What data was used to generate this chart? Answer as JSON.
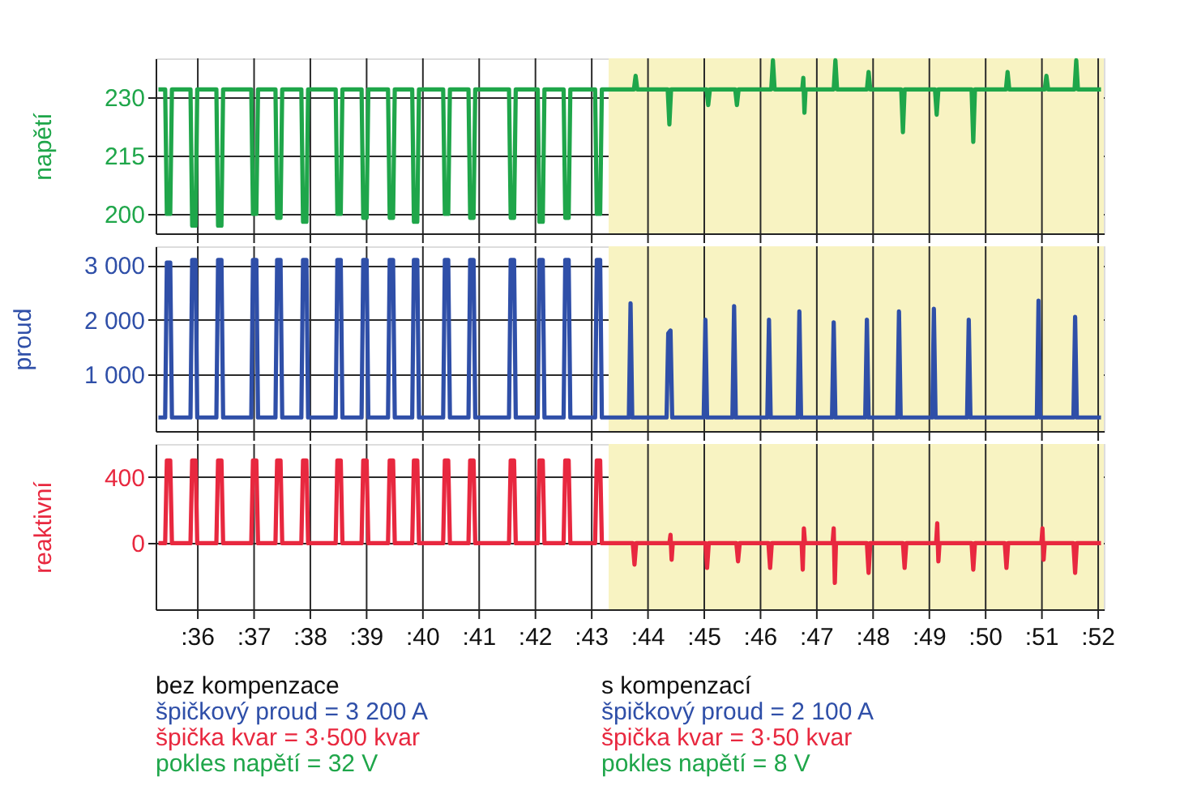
{
  "chart_data": [
    {
      "type": "line",
      "ylabel": "napětí",
      "xlim": [
        35.25,
        52.1
      ],
      "ylim": [
        195,
        240
      ],
      "yticks": [
        200,
        215,
        230
      ],
      "xticks": [
        {
          "value": 36,
          "label": null
        },
        {
          "value": 37,
          "label": null
        },
        {
          "value": 38,
          "label": null
        },
        {
          "value": 39,
          "label": null
        },
        {
          "value": 40,
          "label": null
        },
        {
          "value": 41,
          "label": null
        },
        {
          "value": 42,
          "label": null
        },
        {
          "value": 43,
          "label": null
        },
        {
          "value": 44,
          "label": null
        },
        {
          "value": 45,
          "label": null
        },
        {
          "value": 46,
          "label": null
        },
        {
          "value": 47,
          "label": null
        },
        {
          "value": 48,
          "label": null
        },
        {
          "value": 49,
          "label": null
        },
        {
          "value": 50,
          "label": null
        },
        {
          "value": 51,
          "label": null
        },
        {
          "value": 52,
          "label": null
        }
      ],
      "grid": true,
      "tick_labels": "y",
      "bands": [
        {
          "axis": "x",
          "from": 43.3,
          "to": 52.1,
          "color": "#f8f3c2"
        }
      ],
      "series": [
        {
          "color": "#1fa64a",
          "x": [
            35.3,
            35.42,
            35.45,
            35.51,
            35.54,
            35.87,
            35.9,
            35.96,
            35.99,
            36.33,
            36.36,
            36.42,
            36.45,
            36.95,
            36.98,
            37.04,
            37.07,
            37.38,
            37.41,
            37.47,
            37.5,
            37.84,
            37.87,
            37.93,
            37.96,
            38.45,
            38.48,
            38.54,
            38.57,
            38.91,
            38.94,
            39.0,
            39.03,
            39.38,
            39.41,
            39.47,
            39.5,
            39.81,
            39.84,
            39.9,
            39.93,
            40.36,
            40.39,
            40.45,
            40.48,
            40.81,
            40.84,
            40.9,
            40.93,
            41.53,
            41.56,
            41.62,
            41.65,
            42.04,
            42.07,
            42.13,
            42.16,
            42.5,
            42.53,
            42.59,
            42.62,
            43.06,
            43.09,
            43.15,
            43.18,
            43.75,
            43.78,
            43.81,
            44.35,
            44.38,
            44.41,
            45.04,
            45.07,
            45.1,
            45.55,
            45.58,
            45.61,
            46.19,
            46.22,
            46.25,
            46.74,
            46.76,
            46.78,
            46.8,
            47.3,
            47.33,
            47.36,
            47.89,
            47.92,
            47.95,
            48.5,
            48.53,
            48.56,
            49.1,
            49.13,
            49.16,
            49.75,
            49.78,
            49.81,
            50.36,
            50.39,
            50.42,
            51.05,
            51.08,
            51.11,
            51.58,
            51.61,
            51.64,
            52.05
          ],
          "values": [
            232,
            232,
            200,
            200,
            232,
            232,
            197,
            197,
            232,
            232,
            197,
            197,
            232,
            232,
            200,
            200,
            232,
            232,
            199,
            199,
            232,
            232,
            198,
            198,
            232,
            232,
            200,
            200,
            232,
            232,
            199,
            199,
            232,
            232,
            199,
            199,
            232,
            232,
            198,
            198,
            232,
            232,
            200,
            200,
            232,
            232,
            199,
            199,
            232,
            232,
            199,
            199,
            232,
            232,
            198,
            198,
            232,
            232,
            199,
            199,
            232,
            232,
            200,
            200,
            232,
            232,
            235.5,
            232,
            232,
            223,
            232,
            232,
            228,
            232,
            232,
            228,
            232,
            232,
            239.5,
            232,
            232,
            235,
            226,
            232,
            232,
            239.5,
            232,
            232,
            236.5,
            232,
            232,
            221,
            232,
            232,
            225.5,
            232,
            232,
            218.5,
            232,
            232,
            236.5,
            232,
            232,
            235.5,
            232,
            232,
            239.5,
            232,
            232
          ]
        }
      ]
    },
    {
      "type": "line",
      "ylabel": "proud",
      "xlim": [
        35.25,
        52.1
      ],
      "ylim": [
        -50,
        3350
      ],
      "yticks": [
        {
          "value": 1000,
          "label": "1 000"
        },
        {
          "value": 2000,
          "label": "2 000"
        },
        {
          "value": 3000,
          "label": "3 000"
        }
      ],
      "xticks": [
        {
          "value": 36,
          "label": null
        },
        {
          "value": 37,
          "label": null
        },
        {
          "value": 38,
          "label": null
        },
        {
          "value": 39,
          "label": null
        },
        {
          "value": 40,
          "label": null
        },
        {
          "value": 41,
          "label": null
        },
        {
          "value": 42,
          "label": null
        },
        {
          "value": 43,
          "label": null
        },
        {
          "value": 44,
          "label": null
        },
        {
          "value": 45,
          "label": null
        },
        {
          "value": 46,
          "label": null
        },
        {
          "value": 47,
          "label": null
        },
        {
          "value": 48,
          "label": null
        },
        {
          "value": 49,
          "label": null
        },
        {
          "value": 50,
          "label": null
        },
        {
          "value": 51,
          "label": null
        },
        {
          "value": 52,
          "label": null
        }
      ],
      "grid": true,
      "tick_labels": "y",
      "bands": [
        {
          "axis": "x",
          "from": 43.3,
          "to": 52.1,
          "color": "#f8f3c2"
        }
      ],
      "series": [
        {
          "color": "#2f4fa8",
          "x": [
            35.3,
            35.42,
            35.45,
            35.51,
            35.54,
            35.87,
            35.9,
            35.96,
            35.99,
            36.33,
            36.36,
            36.42,
            36.45,
            36.95,
            36.98,
            37.04,
            37.07,
            37.38,
            37.41,
            37.47,
            37.5,
            37.84,
            37.87,
            37.93,
            37.96,
            38.45,
            38.48,
            38.54,
            38.57,
            38.91,
            38.94,
            39.0,
            39.03,
            39.38,
            39.41,
            39.47,
            39.5,
            39.81,
            39.84,
            39.9,
            39.93,
            40.36,
            40.39,
            40.45,
            40.48,
            40.81,
            40.84,
            40.9,
            40.93,
            41.53,
            41.56,
            41.62,
            41.65,
            42.04,
            42.07,
            42.13,
            42.16,
            42.5,
            42.53,
            42.59,
            42.62,
            43.06,
            43.09,
            43.15,
            43.18,
            43.66,
            43.69,
            43.72,
            44.33,
            44.36,
            44.4,
            44.43,
            44.99,
            45.02,
            45.05,
            45.5,
            45.53,
            45.56,
            46.12,
            46.15,
            46.18,
            46.66,
            46.69,
            46.72,
            47.27,
            47.3,
            47.33,
            47.86,
            47.89,
            47.92,
            48.43,
            48.46,
            48.49,
            49.05,
            49.08,
            49.11,
            49.67,
            49.7,
            49.73,
            50.91,
            50.94,
            50.97,
            51.56,
            51.59,
            51.62,
            52.05
          ],
          "values": [
            200,
            200,
            3050,
            3050,
            200,
            200,
            3100,
            3100,
            200,
            200,
            3100,
            3100,
            200,
            200,
            3100,
            3100,
            200,
            200,
            3100,
            3100,
            200,
            200,
            3100,
            3100,
            200,
            200,
            3100,
            3100,
            200,
            200,
            3100,
            3100,
            200,
            200,
            3100,
            3100,
            200,
            200,
            3100,
            3100,
            200,
            200,
            3100,
            3100,
            200,
            200,
            3100,
            3100,
            200,
            200,
            3100,
            3100,
            200,
            200,
            3100,
            3100,
            200,
            200,
            3100,
            3100,
            200,
            200,
            3100,
            3100,
            200,
            200,
            2300,
            200,
            200,
            1750,
            1800,
            200,
            200,
            2000,
            200,
            200,
            2250,
            200,
            200,
            2000,
            200,
            200,
            2150,
            200,
            200,
            1950,
            200,
            200,
            2000,
            200,
            200,
            2150,
            200,
            200,
            2200,
            200,
            200,
            2000,
            200,
            200,
            2350,
            200,
            200,
            2050,
            200,
            200
          ]
        }
      ]
    },
    {
      "type": "line",
      "ylabel": "reaktivní",
      "xlim": [
        35.25,
        52.1
      ],
      "ylim": [
        -400,
        600
      ],
      "yticks": [
        0,
        400
      ],
      "xticks": [
        {
          "value": 36,
          "label": ":36"
        },
        {
          "value": 37,
          "label": ":37"
        },
        {
          "value": 38,
          "label": ":38"
        },
        {
          "value": 39,
          "label": ":39"
        },
        {
          "value": 40,
          "label": ":40"
        },
        {
          "value": 41,
          "label": ":41"
        },
        {
          "value": 42,
          "label": ":42"
        },
        {
          "value": 43,
          "label": ":43"
        },
        {
          "value": 44,
          "label": ":44"
        },
        {
          "value": 45,
          "label": ":45"
        },
        {
          "value": 46,
          "label": ":46"
        },
        {
          "value": 47,
          "label": ":47"
        },
        {
          "value": 48,
          "label": ":48"
        },
        {
          "value": 49,
          "label": ":49"
        },
        {
          "value": 50,
          "label": ":50"
        },
        {
          "value": 51,
          "label": ":51"
        },
        {
          "value": 52,
          "label": ":52"
        }
      ],
      "grid": true,
      "bands": [
        {
          "axis": "x",
          "from": 43.3,
          "to": 52.1,
          "color": "#f8f3c2"
        }
      ],
      "annotations": [
        "bez kompenzace",
        "špičkový proud = 3 200 A",
        "špička kvar = 3·500 kvar",
        "pokles napětí = 32 V",
        "s kompenzací",
        "špičkový proud = 2 100 A",
        "špička kvar = 3·50 kvar",
        "pokles napětí = 8 V"
      ],
      "series": [
        {
          "color": "#e8283f",
          "x": [
            35.3,
            35.42,
            35.45,
            35.51,
            35.54,
            35.87,
            35.9,
            35.96,
            35.99,
            36.33,
            36.36,
            36.42,
            36.45,
            36.95,
            36.98,
            37.04,
            37.07,
            37.38,
            37.41,
            37.47,
            37.5,
            37.84,
            37.87,
            37.93,
            37.96,
            38.45,
            38.48,
            38.54,
            38.57,
            38.91,
            38.94,
            39.0,
            39.03,
            39.38,
            39.41,
            39.47,
            39.5,
            39.81,
            39.84,
            39.9,
            39.93,
            40.36,
            40.39,
            40.45,
            40.48,
            40.81,
            40.84,
            40.9,
            40.93,
            41.53,
            41.56,
            41.62,
            41.65,
            42.04,
            42.07,
            42.13,
            42.16,
            42.5,
            42.53,
            42.59,
            42.62,
            43.06,
            43.09,
            43.15,
            43.18,
            43.73,
            43.76,
            43.79,
            44.38,
            44.4,
            44.42,
            44.44,
            45.02,
            45.05,
            45.08,
            45.57,
            45.6,
            45.63,
            46.14,
            46.17,
            46.2,
            46.73,
            46.75,
            46.77,
            46.79,
            47.28,
            47.3,
            47.32,
            47.34,
            47.89,
            47.92,
            47.95,
            48.53,
            48.56,
            48.59,
            49.12,
            49.14,
            49.16,
            49.18,
            49.75,
            49.78,
            49.81,
            50.34,
            50.37,
            50.4,
            50.99,
            51.01,
            51.03,
            51.05,
            51.56,
            51.59,
            51.62,
            52.05
          ],
          "values": [
            0,
            0,
            500,
            500,
            0,
            0,
            500,
            500,
            0,
            0,
            500,
            500,
            0,
            0,
            500,
            500,
            0,
            0,
            500,
            500,
            0,
            0,
            500,
            500,
            0,
            0,
            500,
            500,
            0,
            0,
            500,
            500,
            0,
            0,
            500,
            500,
            0,
            0,
            500,
            500,
            0,
            0,
            500,
            500,
            0,
            0,
            500,
            500,
            0,
            0,
            500,
            500,
            0,
            0,
            500,
            500,
            0,
            0,
            500,
            500,
            0,
            0,
            500,
            500,
            0,
            0,
            -130,
            0,
            0,
            50,
            -100,
            0,
            0,
            -150,
            0,
            0,
            -110,
            0,
            0,
            -150,
            0,
            0,
            -160,
            90,
            0,
            0,
            90,
            -240,
            0,
            0,
            -180,
            0,
            0,
            -150,
            0,
            0,
            120,
            -110,
            0,
            0,
            -160,
            0,
            0,
            -150,
            0,
            0,
            90,
            -100,
            0,
            0,
            -180,
            0,
            0
          ]
        }
      ]
    }
  ]
}
